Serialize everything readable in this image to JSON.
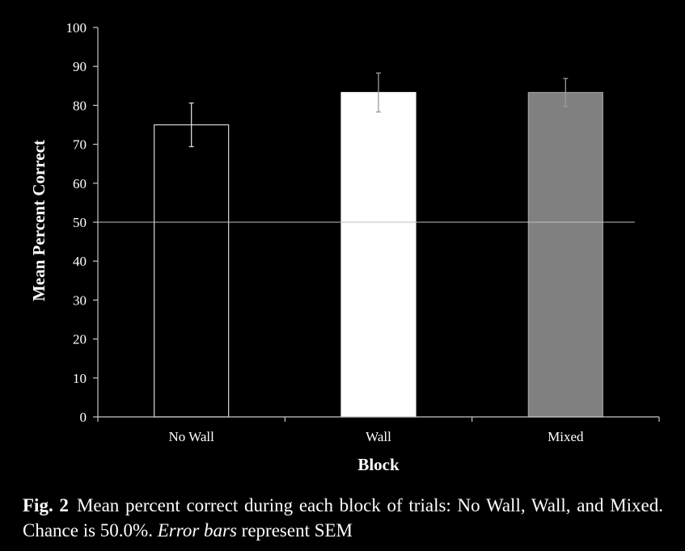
{
  "chart_data": {
    "type": "bar",
    "categories": [
      "No Wall",
      "Wall",
      "Mixed"
    ],
    "values": [
      75.0,
      83.3,
      83.3
    ],
    "error": [
      5.6,
      5.0,
      3.6
    ],
    "bar_fill_colors": [
      "#000000",
      "#ffffff",
      "#808080"
    ],
    "bar_stroke_colors": [
      "#d9d9d9",
      "#ffffff",
      "#a0a0a0"
    ],
    "xlabel": "Block",
    "ylabel": "Mean Percent Correct",
    "ylim": [
      0,
      100
    ],
    "yticks": [
      0,
      10,
      20,
      30,
      40,
      50,
      60,
      70,
      80,
      90,
      100
    ],
    "reference_line": 50,
    "background": "#000000",
    "foreground": "#ffffff"
  },
  "caption": {
    "label": "Fig. 2",
    "text_part1": "Mean percent correct during each block of trials: No Wall, Wall, and Mixed. Chance is 50.0%. ",
    "text_italic": "Error bars",
    "text_part2": " represent SEM"
  }
}
